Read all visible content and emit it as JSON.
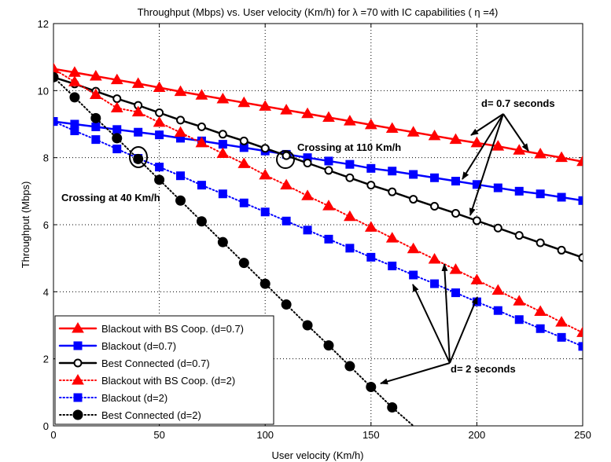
{
  "chart_data": {
    "type": "line",
    "title": "Throughput (Mbps) vs. User velocity (Km/h) for λ =70 with IC capabilities ( η =4)",
    "xlabel": "User velocity (Km/h)",
    "ylabel": "Throughput (Mbps)",
    "xlim": [
      0,
      250
    ],
    "ylim": [
      0,
      12
    ],
    "xticks": [
      0,
      50,
      100,
      150,
      200,
      250
    ],
    "yticks": [
      0,
      2,
      4,
      6,
      8,
      10,
      12
    ],
    "grid": true,
    "legend_position": "bottom-left",
    "x": [
      0,
      10,
      20,
      30,
      40,
      50,
      60,
      70,
      80,
      90,
      100,
      110,
      120,
      130,
      140,
      150,
      160,
      170,
      180,
      190,
      200,
      210,
      220,
      230,
      240,
      250
    ],
    "series": [
      {
        "name": "Blackout with BS Coop. (d=0.7)",
        "color": "#ff0000",
        "marker": "triangle",
        "line": "solid",
        "values": [
          10.65,
          10.54,
          10.43,
          10.32,
          10.21,
          10.09,
          9.97,
          9.86,
          9.75,
          9.64,
          9.53,
          9.42,
          9.31,
          9.2,
          9.09,
          8.98,
          8.87,
          8.76,
          8.65,
          8.54,
          8.44,
          8.34,
          8.22,
          8.11,
          8.0,
          7.88
        ]
      },
      {
        "name": "Blackout (d=0.7)",
        "color": "#0000ff",
        "marker": "square",
        "line": "solid",
        "values": [
          9.08,
          9.0,
          8.92,
          8.84,
          8.76,
          8.68,
          8.58,
          8.5,
          8.4,
          8.3,
          8.2,
          8.1,
          8.0,
          7.9,
          7.8,
          7.68,
          7.6,
          7.5,
          7.4,
          7.3,
          7.2,
          7.1,
          7.0,
          6.92,
          6.82,
          6.72
        ]
      },
      {
        "name": "Best Connected (d=0.7)",
        "color": "#000000",
        "marker": "circle-open",
        "line": "solid",
        "values": [
          10.4,
          10.2,
          9.98,
          9.76,
          9.56,
          9.34,
          9.12,
          8.92,
          8.7,
          8.5,
          8.28,
          8.06,
          7.84,
          7.62,
          7.4,
          7.18,
          6.98,
          6.76,
          6.55,
          6.34,
          6.12,
          5.9,
          5.68,
          5.46,
          5.24,
          5.02
        ]
      },
      {
        "name": "Blackout with BS Coop. (d=2)",
        "color": "#ff0000",
        "marker": "triangle",
        "line": "dotted",
        "values": [
          10.65,
          10.26,
          9.88,
          9.48,
          9.36,
          9.05,
          8.75,
          8.44,
          8.12,
          7.82,
          7.48,
          7.18,
          6.86,
          6.56,
          6.24,
          5.92,
          5.6,
          5.28,
          4.97,
          4.66,
          4.35,
          4.04,
          3.72,
          3.41,
          3.09,
          2.78
        ]
      },
      {
        "name": "Blackout (d=2)",
        "color": "#0000ff",
        "marker": "square",
        "line": "dotted",
        "values": [
          9.08,
          8.8,
          8.54,
          8.26,
          7.98,
          7.72,
          7.46,
          7.18,
          6.92,
          6.65,
          6.38,
          6.11,
          5.84,
          5.57,
          5.3,
          5.03,
          4.77,
          4.5,
          4.24,
          3.97,
          3.7,
          3.44,
          3.17,
          2.9,
          2.64,
          2.37
        ]
      },
      {
        "name": "Best Connected (d=2)",
        "color": "#000000",
        "marker": "circle-filled",
        "line": "dotted",
        "x": [
          0,
          10,
          20,
          30,
          40,
          50,
          60,
          70,
          80,
          90,
          100,
          110,
          120,
          130,
          140,
          150,
          160
        ],
        "values": [
          10.4,
          9.8,
          9.18,
          8.58,
          7.96,
          7.34,
          6.72,
          6.1,
          5.48,
          4.86,
          4.24,
          3.62,
          3.0,
          2.4,
          1.78,
          1.16,
          0.55
        ],
        "line_end": [
          170,
          0
        ]
      }
    ],
    "annotations": [
      {
        "text": "d= 0.7 seconds",
        "target": "d=0.7 curves",
        "at": [
          205,
          9.85
        ]
      },
      {
        "text": "Crossing at 110 Km/h",
        "target": "crossing of Best Connected (d=0.7) and Blackout (d=0.7)",
        "at": [
          110,
          8.2
        ]
      },
      {
        "text": "Crossing at 40 Km/h",
        "target": "crossing of Best Connected (d=2) and Blackout (d=2)",
        "at": [
          40,
          8.0
        ]
      },
      {
        "text": "d= 2 seconds",
        "target": "d=2 curves",
        "at": [
          190,
          1.7
        ]
      }
    ]
  }
}
